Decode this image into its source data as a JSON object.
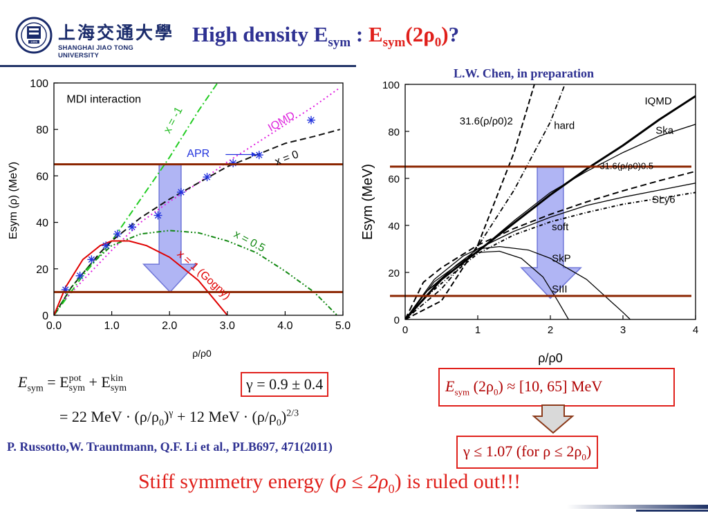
{
  "header": {
    "logo_cn": "上海交通大學",
    "logo_en": "SHANGHAI JIAO TONG UNIVERSITY",
    "logo_year": "1896",
    "title_main": "High density E",
    "title_sub": "sym",
    "title_colon": " : ",
    "title_red_main": "E",
    "title_red_sub": "sym",
    "title_red_rest": "(2ρ",
    "title_red_sub0": "0",
    "title_red_close": ")",
    "title_q": "?"
  },
  "credit": "L.W. Chen, in preparation",
  "colors": {
    "title_blue": "#2e3192",
    "accent_red": "#e0201b",
    "band_line": "#8b2500",
    "arrow_fill": "#8f96f0"
  },
  "chart_data": [
    {
      "type": "line",
      "inner_label": "MDI interaction",
      "xlabel": "ρ/ρ0",
      "ylabel": "Esym (ρ) (MeV)",
      "xlim": [
        0.0,
        5.0
      ],
      "ylim": [
        0,
        100
      ],
      "xticks": [
        "0.0",
        "1.0",
        "2.0",
        "3.0",
        "4.0",
        "5.0"
      ],
      "yticks": [
        "0",
        "20",
        "40",
        "60",
        "80",
        "100"
      ],
      "band": [
        10,
        65
      ],
      "series": [
        {
          "name": "x = -1",
          "color": "#22cc22",
          "dash": "10,4,2,4",
          "points": [
            [
              0,
              0
            ],
            [
              0.5,
              17
            ],
            [
              1.0,
              32
            ],
            [
              1.5,
              50
            ],
            [
              2.0,
              68
            ],
            [
              2.5,
              88
            ],
            [
              2.83,
              100
            ]
          ]
        },
        {
          "name": "IQMD",
          "color": "#e020e0",
          "dash": "2,4",
          "points": [
            [
              0.2,
              7
            ],
            [
              0.5,
              15
            ],
            [
              1.0,
              28
            ],
            [
              1.5,
              40
            ],
            [
              2.0,
              49
            ],
            [
              2.5,
              57
            ],
            [
              3.0,
              66
            ],
            [
              3.5,
              74
            ],
            [
              4.0,
              82
            ],
            [
              4.5,
              90
            ],
            [
              4.95,
              98
            ]
          ]
        },
        {
          "name": "x = 0",
          "color": "#111111",
          "dash": "9,5",
          "points": [
            [
              0,
              0
            ],
            [
              0.3,
              12
            ],
            [
              0.5,
              18
            ],
            [
              0.8,
              27
            ],
            [
              1.0,
              32
            ],
            [
              1.5,
              42
            ],
            [
              2.0,
              50
            ],
            [
              2.5,
              57
            ],
            [
              3.0,
              64
            ],
            [
              3.5,
              69
            ],
            [
              4.0,
              74
            ],
            [
              4.5,
              77
            ],
            [
              4.95,
              80
            ]
          ]
        },
        {
          "name": "x = 0.5",
          "color": "#118811",
          "dash": "7,3,2,3,2,3",
          "points": [
            [
              0,
              0
            ],
            [
              0.3,
              12
            ],
            [
              0.6,
              21
            ],
            [
              1.0,
              30
            ],
            [
              1.5,
              35
            ],
            [
              2.0,
              36.5
            ],
            [
              2.5,
              35.5
            ],
            [
              3.0,
              32
            ],
            [
              3.5,
              27
            ],
            [
              4.0,
              19
            ],
            [
              4.5,
              10
            ],
            [
              4.9,
              0
            ]
          ]
        },
        {
          "name": "x = 1 (Gogny)",
          "color": "#e00000",
          "dash": "",
          "points": [
            [
              0,
              0
            ],
            [
              0.2,
              12
            ],
            [
              0.5,
              24
            ],
            [
              0.8,
              30
            ],
            [
              1.0,
              32
            ],
            [
              1.3,
              32
            ],
            [
              1.6,
              30
            ],
            [
              2.0,
              25
            ],
            [
              2.5,
              15
            ],
            [
              2.8,
              6
            ],
            [
              3.0,
              0
            ]
          ]
        }
      ],
      "scatter": {
        "name": "APR",
        "color": "#2233dd",
        "points": [
          [
            0.2,
            11
          ],
          [
            0.45,
            17
          ],
          [
            0.65,
            24
          ],
          [
            0.9,
            30
          ],
          [
            1.1,
            35
          ],
          [
            1.35,
            38
          ],
          [
            1.8,
            43
          ],
          [
            2.2,
            53
          ],
          [
            2.65,
            59.5
          ],
          [
            3.1,
            65.5
          ],
          [
            3.55,
            69
          ],
          [
            4.45,
            84
          ]
        ]
      },
      "annotations": [
        "x = -1",
        "IQMD",
        "APR",
        "x = 0",
        "x = 0.5",
        "x = 1 (Gogny)"
      ]
    },
    {
      "type": "line",
      "xlabel": "ρ/ρ0",
      "ylabel": "Esym (MeV)",
      "xlim": [
        0,
        4
      ],
      "ylim": [
        0,
        100
      ],
      "xticks": [
        "0",
        "1",
        "2",
        "3",
        "4"
      ],
      "yticks": [
        "0",
        "20",
        "40",
        "60",
        "80",
        "100"
      ],
      "band": [
        10,
        65
      ],
      "series": [
        {
          "name": "IQMD",
          "color": "#000000",
          "dash": "",
          "width": 3,
          "points": [
            [
              0,
              0
            ],
            [
              0.5,
              17
            ],
            [
              1.0,
              29
            ],
            [
              1.5,
              41
            ],
            [
              2.0,
              53
            ],
            [
              2.5,
              64
            ],
            [
              3.0,
              74
            ],
            [
              3.5,
              85
            ],
            [
              4.0,
              95
            ]
          ]
        },
        {
          "name": "Ska",
          "color": "#000000",
          "dash": "",
          "width": 1.3,
          "points": [
            [
              0,
              0
            ],
            [
              0.3,
              12
            ],
            [
              0.7,
              22
            ],
            [
              1.0,
              29
            ],
            [
              1.5,
              42
            ],
            [
              2.0,
              54
            ],
            [
              2.5,
              63
            ],
            [
              3.0,
              71
            ],
            [
              3.5,
              78
            ],
            [
              4.0,
              83
            ]
          ]
        },
        {
          "name": "31.6(ρ/ρ0)^0.5",
          "color": "#000000",
          "dash": "9,5",
          "width": 2,
          "points": [
            [
              0,
              0
            ],
            [
              0.25,
              15.8
            ],
            [
              0.5,
              22
            ],
            [
              1.0,
              31.6
            ],
            [
              1.5,
              38.7
            ],
            [
              2.0,
              44.7
            ],
            [
              2.5,
              50
            ],
            [
              3.0,
              54.7
            ],
            [
              3.5,
              59
            ],
            [
              4.0,
              63
            ]
          ]
        },
        {
          "name": "SLy6",
          "color": "#000000",
          "dash": "",
          "width": 1.3,
          "points": [
            [
              0,
              0
            ],
            [
              0.3,
              12
            ],
            [
              0.7,
              23
            ],
            [
              1.0,
              30
            ],
            [
              1.5,
              37.5
            ],
            [
              2.0,
              43.5
            ],
            [
              2.5,
              48.5
            ],
            [
              3.0,
              52
            ],
            [
              3.5,
              55
            ],
            [
              4.0,
              58
            ]
          ]
        },
        {
          "name": "soft",
          "color": "#000000",
          "dash": "5,3,1,3",
          "width": 2,
          "points": [
            [
              0,
              0
            ],
            [
              0.3,
              10
            ],
            [
              0.6,
              18
            ],
            [
              1.0,
              28
            ],
            [
              1.5,
              36
            ],
            [
              2.0,
              41.5
            ],
            [
              2.5,
              45.5
            ],
            [
              3.0,
              49
            ],
            [
              3.5,
              51.5
            ],
            [
              4.0,
              54
            ]
          ]
        },
        {
          "name": "31.6(ρ/ρ0)^2",
          "color": "#000000",
          "dash": "8,4",
          "width": 2,
          "points": [
            [
              0,
              0
            ],
            [
              0.5,
              7.9
            ],
            [
              1.0,
              31.6
            ],
            [
              1.5,
              71
            ],
            [
              1.78,
              100
            ]
          ]
        },
        {
          "name": "hard",
          "color": "#000000",
          "dash": "7,3,1,3",
          "width": 1.8,
          "points": [
            [
              0,
              0
            ],
            [
              0.5,
              13
            ],
            [
              1.0,
              31
            ],
            [
              1.5,
              55
            ],
            [
              2.0,
              84
            ],
            [
              2.2,
              100
            ]
          ]
        },
        {
          "name": "SkP",
          "color": "#000000",
          "dash": "",
          "width": 1.3,
          "points": [
            [
              0,
              0
            ],
            [
              0.4,
              17
            ],
            [
              0.8,
              27
            ],
            [
              1.0,
              30
            ],
            [
              1.3,
              31
            ],
            [
              1.7,
              29.5
            ],
            [
              2.0,
              26
            ],
            [
              2.5,
              17
            ],
            [
              3.0,
              3
            ],
            [
              3.1,
              0
            ]
          ]
        },
        {
          "name": "SIII",
          "color": "#000000",
          "dash": "",
          "width": 1.3,
          "points": [
            [
              0,
              0
            ],
            [
              0.4,
              16
            ],
            [
              0.8,
              25
            ],
            [
              1.0,
              28.5
            ],
            [
              1.3,
              29
            ],
            [
              1.6,
              26
            ],
            [
              1.9,
              18
            ],
            [
              2.1,
              8
            ],
            [
              2.25,
              0
            ]
          ]
        }
      ],
      "annotations": [
        "IQMD",
        "Ska",
        "31.6(ρ/ρ0)0.5",
        "SLy6",
        "soft",
        "SkP",
        "SIII",
        "hard",
        "31.6(ρ/ρ0)2"
      ]
    }
  ],
  "equations": {
    "line1": "Esym = Esym^pot + Esym^kin",
    "line1_lhs": "E",
    "line1_lhs_sub": "sym",
    "line1_eq": " = E",
    "line1_pot_sup": "pot",
    "line1_pot_sub": "sym",
    "line1_plus": " + E",
    "line1_kin_sup": "kin",
    "line1_kin_sub": "sym",
    "line2_a": "= 22 MeV · (ρ/ρ",
    "line2_sub0a": "0",
    "line2_b": ")",
    "line2_gamma": "γ",
    "line2_c": " + 12 MeV · (ρ/ρ",
    "line2_sub0b": "0",
    "line2_d": ")",
    "line2_exp": "2/3",
    "gamma_box": "γ = 0.9 ± 0.4",
    "esym_box_e": "E",
    "esym_box_sub": "sym",
    "esym_box_rest": " (2ρ",
    "esym_box_sub0": "0",
    "esym_box_val": ") ≈ [10, 65] MeV",
    "result_box": "γ ≤ 1.07  (for ρ ≤ 2ρ",
    "result_box_sub0": "0",
    "result_box_close": ")"
  },
  "reference": "P. Russotto,W. Trauntmann, Q.F. Li  et al., PLB697, 471(2011)",
  "conclusion": {
    "pre": "Stiff symmetry energy (",
    "math": "ρ ≤ 2ρ",
    "sub0": "0",
    "post": ") is ruled out!!!"
  }
}
